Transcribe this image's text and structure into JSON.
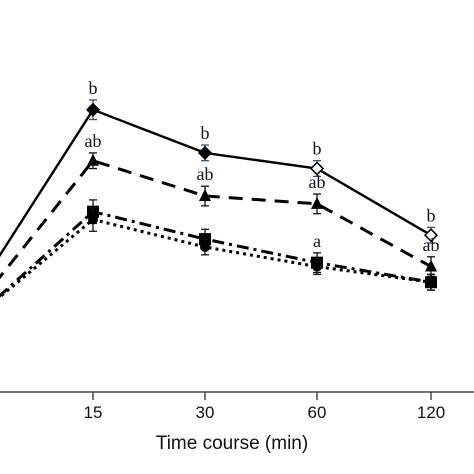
{
  "chart_data": {
    "type": "line",
    "xlabel": "Time course (min)",
    "ylabel": "",
    "title": "",
    "x": [
      "15",
      "30",
      "60",
      "120"
    ],
    "ylim": [
      0,
      10
    ],
    "grid": false,
    "legend": "none",
    "series": [
      {
        "style": "solid",
        "marker": "diamond",
        "color": "#000000",
        "values": [
          7.2,
          6.1,
          5.7,
          4.0
        ],
        "errors": [
          0.25,
          0.2,
          0.2,
          0.2
        ],
        "sig_labels": [
          "b",
          "b",
          "b",
          "b"
        ]
      },
      {
        "style": "dashed",
        "marker": "triangle",
        "color": "#000000",
        "values": [
          5.9,
          5.0,
          4.8,
          3.2
        ],
        "errors": [
          0.2,
          0.25,
          0.25,
          0.25
        ],
        "sig_labels": [
          "ab",
          "ab",
          "ab",
          "ab"
        ]
      },
      {
        "style": "dashdot",
        "marker": "square",
        "color": "#000000",
        "values": [
          4.6,
          3.9,
          3.3,
          2.8
        ],
        "errors": [
          0.3,
          0.25,
          0.25,
          0.2
        ],
        "sig_labels": [
          "",
          "",
          "a",
          ""
        ]
      },
      {
        "style": "dotted",
        "marker": "circle",
        "color": "#000000",
        "values": [
          4.4,
          3.7,
          3.2,
          2.8
        ],
        "errors": [
          0.3,
          0.2,
          0.2,
          0.2
        ],
        "sig_labels": [
          "",
          "",
          "",
          ""
        ]
      }
    ]
  }
}
